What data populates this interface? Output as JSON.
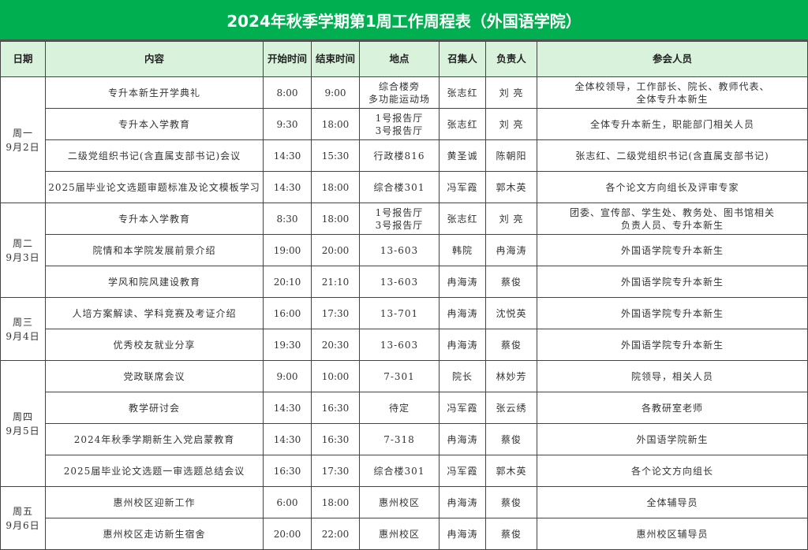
{
  "title": "2024年秋季学期第1周工作周程表（外国语学院）",
  "headers": [
    "日期",
    "内容",
    "开始时间",
    "结束时间",
    "地点",
    "召集人",
    "负责人",
    "参会人员"
  ],
  "days": [
    {
      "day": "周一",
      "date": "9月2日",
      "rows": [
        [
          "专升本新生开学典礼",
          "8:00",
          "9:00",
          "综合楼旁\n多功能运动场",
          "张志红",
          "刘 亮",
          "全体校领导，工作部长、院长、教师代表、\n全体专升本新生"
        ],
        [
          "专升本入学教育",
          "9:30",
          "18:00",
          "1号报告厅\n3号报告厅",
          "张志红",
          "刘 亮",
          "全体专升本新生，职能部门相关人员"
        ],
        [
          "二级党组织书记(含直属支部书记)会议",
          "14:30",
          "15:30",
          "行政楼816",
          "黄圣诚",
          "陈朝阳",
          "张志红、二级党组织书记(含直属支部书记)"
        ],
        [
          "2025届毕业论文选题审题标准及论文模板学习",
          "14:30",
          "18:00",
          "综合楼301",
          "冯军霞",
          "郭木英",
          "各个论文方向组长及评审专家"
        ]
      ]
    },
    {
      "day": "周二",
      "date": "9月3日",
      "rows": [
        [
          "专升本入学教育",
          "8:30",
          "18:00",
          "1号报告厅\n3号报告厅",
          "张志红",
          "刘 亮",
          "团委、宣传部、学生处、教务处、图书馆相关\n负责人员、专升本新生"
        ],
        [
          "院情和本学院发展前景介绍",
          "19:00",
          "20:00",
          "13-603",
          "韩院",
          "冉海涛",
          "外国语学院专升本新生"
        ],
        [
          "学风和院风建设教育",
          "20:10",
          "21:10",
          "13-603",
          "冉海涛",
          "蔡俊",
          "外国语学院专升本新生"
        ]
      ]
    },
    {
      "day": "周三",
      "date": "9月4日",
      "rows": [
        [
          "人培方案解读、学科竞赛及考证介绍",
          "16:00",
          "17:30",
          "13-701",
          "冉海涛",
          "沈悦英",
          "外国语学院专升本新生"
        ],
        [
          "优秀校友就业分享",
          "19:30",
          "20:30",
          "13-603",
          "冉海涛",
          "蔡俊",
          "外国语学院专升本新生"
        ]
      ]
    },
    {
      "day": "周四",
      "date": "9月5日",
      "rows": [
        [
          "党政联席会议",
          "9:00",
          "10:00",
          "7-301",
          "院长",
          "林妙芳",
          "院领导，相关人员"
        ],
        [
          "教学研讨会",
          "14:30",
          "16:30",
          "待定",
          "冯军霞",
          "张云绣",
          "各教研室老师"
        ],
        [
          "2024年秋季学期新生入党启蒙教育",
          "14:30",
          "16:30",
          "7-318",
          "冉海涛",
          "蔡俊",
          "外国语学院新生"
        ],
        [
          "2025届毕业论文选题一审选题总结会议",
          "16:30",
          "17:30",
          "综合楼301",
          "冯军霞",
          "郭木英",
          "各个论文方向组长"
        ]
      ]
    },
    {
      "day": "周五",
      "date": "9月6日",
      "rows": [
        [
          "惠州校区迎新工作",
          "6:00",
          "18:00",
          "惠州校区",
          "冉海涛",
          "蔡俊",
          "全体辅导员"
        ],
        [
          "惠州校区走访新生宿舍",
          "20:00",
          "22:00",
          "惠州校区",
          "冉海涛",
          "蔡俊",
          "惠州校区辅导员"
        ]
      ]
    }
  ],
  "colors": {
    "title_bg": "#00b050",
    "header_bg": "#d9f2dc"
  }
}
